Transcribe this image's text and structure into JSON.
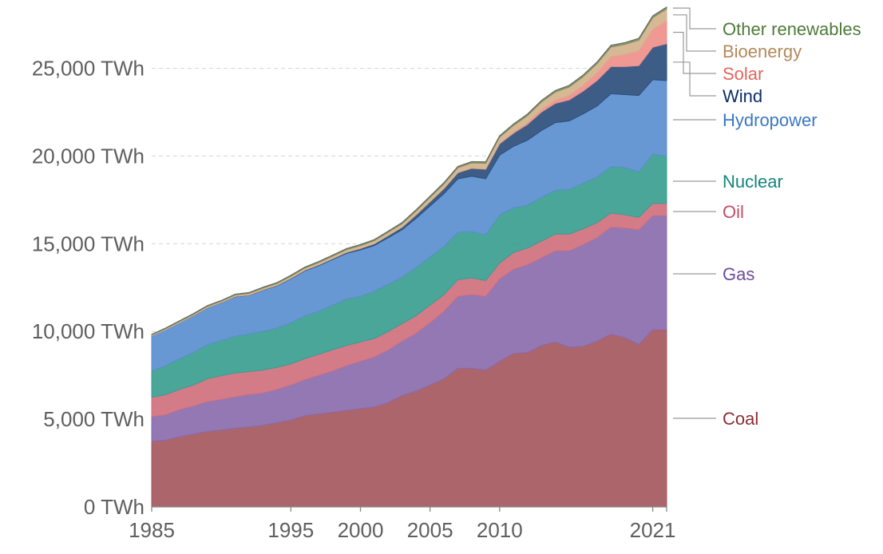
{
  "chart_data": {
    "type": "area",
    "stacked": true,
    "x": [
      1985,
      1986,
      1987,
      1988,
      1989,
      1990,
      1991,
      1992,
      1993,
      1994,
      1995,
      1996,
      1997,
      1998,
      1999,
      2000,
      2001,
      2002,
      2003,
      2004,
      2005,
      2006,
      2007,
      2008,
      2009,
      2010,
      2011,
      2012,
      2013,
      2014,
      2015,
      2016,
      2017,
      2018,
      2019,
      2020,
      2021,
      2022
    ],
    "x_tick_labels": [
      "1985",
      "1995",
      "2000",
      "2005",
      "2010",
      "2021"
    ],
    "x_tick_values": [
      1985,
      1995,
      2000,
      2005,
      2010,
      2021
    ],
    "y_ticks": [
      {
        "value": 0,
        "label": "0 TWh"
      },
      {
        "value": 5000,
        "label": "5,000 TWh"
      },
      {
        "value": 10000,
        "label": "10,000 TWh"
      },
      {
        "value": 15000,
        "label": "15,000 TWh"
      },
      {
        "value": 20000,
        "label": "20,000 TWh"
      },
      {
        "value": 25000,
        "label": "25,000 TWh"
      }
    ],
    "ylim": [
      0,
      27800
    ],
    "xlim": [
      1985,
      2022
    ],
    "grid": "horizontal dashed",
    "legend_placement": "right, labels aligned to series ends",
    "series": [
      {
        "name": "Coal",
        "color": "#a5585e",
        "label_color": "#8b2e33",
        "values": [
          3750,
          3800,
          4000,
          4150,
          4300,
          4380,
          4480,
          4560,
          4650,
          4800,
          4950,
          5200,
          5300,
          5400,
          5500,
          5600,
          5700,
          5950,
          6350,
          6600,
          6950,
          7300,
          7900,
          7900,
          7800,
          8300,
          8750,
          8800,
          9200,
          9400,
          9100,
          9150,
          9450,
          9850,
          9650,
          9250,
          10100,
          10100
        ]
      },
      {
        "name": "Gas",
        "color": "#8a6cae",
        "label_color": "#6f4a9d",
        "values": [
          1400,
          1450,
          1550,
          1600,
          1700,
          1750,
          1800,
          1850,
          1850,
          1900,
          2000,
          2050,
          2200,
          2350,
          2550,
          2700,
          2850,
          3000,
          3100,
          3300,
          3550,
          3850,
          4100,
          4200,
          4200,
          4700,
          4800,
          5000,
          5000,
          5200,
          5500,
          5800,
          5900,
          6100,
          6250,
          6550,
          6500,
          6500
        ]
      },
      {
        "name": "Oil",
        "color": "#d0707e",
        "label_color": "#c14e65",
        "values": [
          1100,
          1150,
          1150,
          1200,
          1300,
          1350,
          1350,
          1300,
          1300,
          1250,
          1200,
          1200,
          1200,
          1200,
          1150,
          1100,
          1050,
          1050,
          1000,
          1000,
          1000,
          950,
          950,
          950,
          900,
          900,
          950,
          950,
          950,
          950,
          950,
          900,
          850,
          800,
          750,
          700,
          700,
          700
        ]
      },
      {
        "name": "Nuclear",
        "color": "#3a9e90",
        "label_color": "#14857a",
        "values": [
          1500,
          1650,
          1750,
          1850,
          1950,
          2000,
          2100,
          2150,
          2200,
          2250,
          2350,
          2450,
          2450,
          2550,
          2650,
          2600,
          2700,
          2700,
          2650,
          2750,
          2750,
          2750,
          2700,
          2650,
          2600,
          2750,
          2550,
          2450,
          2500,
          2500,
          2550,
          2600,
          2600,
          2650,
          2700,
          2600,
          2800,
          2700
        ]
      },
      {
        "name": "Hydropower",
        "color": "#5b8fcf",
        "label_color": "#3a78c3",
        "values": [
          2000,
          2050,
          2050,
          2100,
          2100,
          2150,
          2250,
          2200,
          2350,
          2400,
          2500,
          2550,
          2600,
          2600,
          2600,
          2650,
          2600,
          2650,
          2700,
          2800,
          2900,
          3000,
          3050,
          3150,
          3200,
          3400,
          3500,
          3700,
          3800,
          3850,
          3900,
          3950,
          4050,
          4150,
          4150,
          4350,
          4250,
          4300
        ]
      },
      {
        "name": "Wind",
        "color": "#2d4f7c",
        "label_color": "#0c2d6b",
        "values": [
          3,
          5,
          8,
          10,
          12,
          15,
          18,
          20,
          25,
          30,
          35,
          40,
          45,
          50,
          60,
          80,
          100,
          120,
          150,
          200,
          250,
          300,
          350,
          450,
          550,
          650,
          750,
          900,
          1050,
          1100,
          1200,
          1300,
          1450,
          1550,
          1600,
          1700,
          1850,
          2100
        ]
      },
      {
        "name": "Solar",
        "color": "#ef8f8a",
        "label_color": "#e2665d",
        "values": [
          0,
          0,
          0,
          0,
          0,
          0,
          0,
          0,
          0,
          0,
          0,
          0,
          0,
          1,
          1,
          1,
          2,
          2,
          3,
          4,
          5,
          6,
          8,
          12,
          20,
          30,
          60,
          100,
          140,
          190,
          260,
          330,
          450,
          570,
          690,
          850,
          1030,
          1300
        ]
      },
      {
        "name": "Bioenergy",
        "color": "#d4b28c",
        "label_color": "#b4895b",
        "values": [
          50,
          55,
          60,
          65,
          70,
          75,
          80,
          90,
          95,
          100,
          110,
          120,
          130,
          140,
          150,
          160,
          170,
          180,
          190,
          210,
          230,
          250,
          270,
          290,
          310,
          340,
          380,
          400,
          430,
          450,
          470,
          490,
          510,
          540,
          570,
          600,
          650,
          680
        ]
      },
      {
        "name": "Other renewables",
        "color": "#7c945f",
        "label_color": "#4f7a3a",
        "values": [
          30,
          32,
          35,
          38,
          40,
          42,
          44,
          46,
          48,
          50,
          52,
          54,
          56,
          58,
          60,
          62,
          64,
          66,
          68,
          70,
          72,
          74,
          76,
          78,
          80,
          82,
          84,
          86,
          88,
          90,
          92,
          94,
          96,
          98,
          100,
          102,
          104,
          106
        ]
      }
    ]
  }
}
